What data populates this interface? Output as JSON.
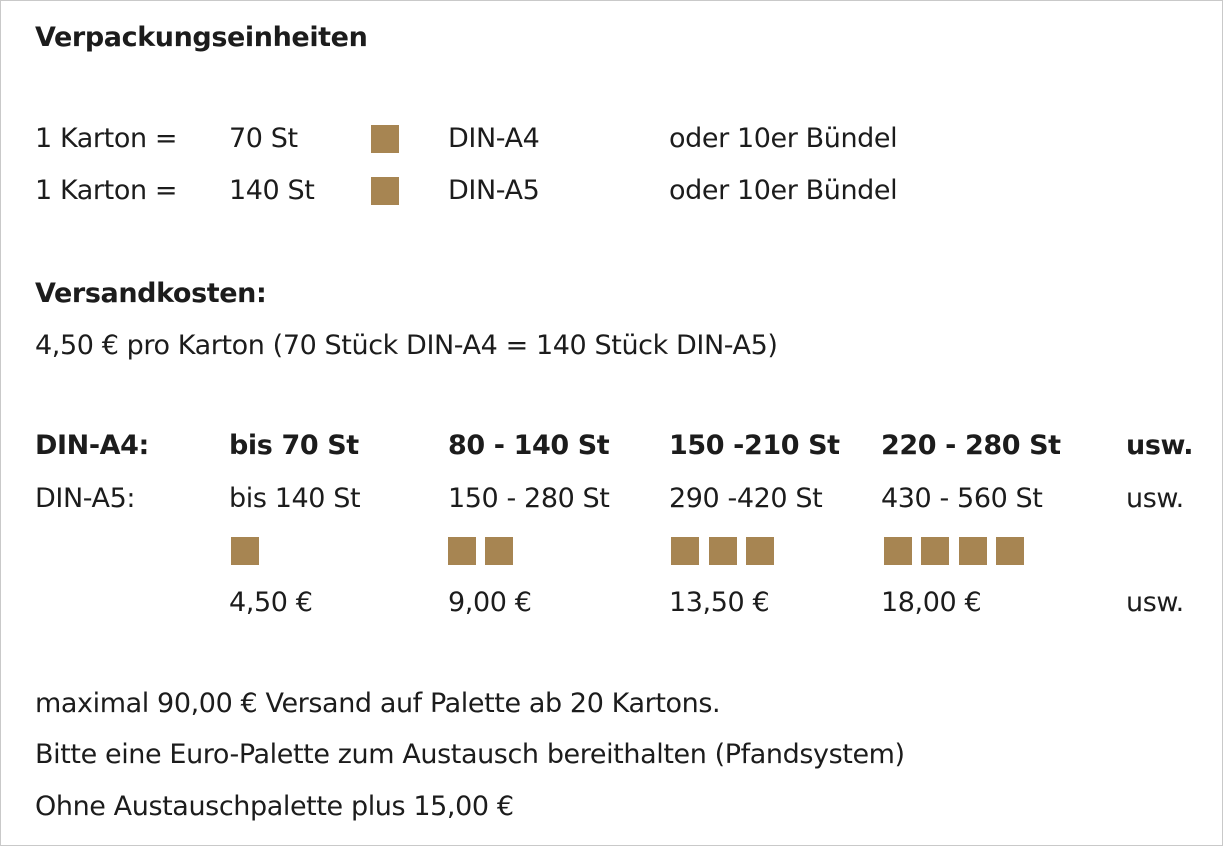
{
  "packaging": {
    "title": "Verpackungseinheiten",
    "rows": [
      {
        "label": "1 Karton =",
        "qty": "70 St",
        "format": "DIN-A4",
        "alt": "oder 10er Bündel"
      },
      {
        "label": "1 Karton =",
        "qty": "140 St",
        "format": "DIN-A5",
        "alt": "oder 10er Bündel"
      }
    ]
  },
  "shipping": {
    "title": "Versandkosten:",
    "note": "4,50 €  pro Karton (70 Stück DIN-A4 = 140 Stück DIN-A5)"
  },
  "tiers": {
    "a4_label": "DIN-A4:",
    "a5_label": "DIN-A5:",
    "columns": [
      {
        "a4": "bis 70 St",
        "a5": "bis 140 St",
        "cartons": 1,
        "price": "4,50 €"
      },
      {
        "a4": "80 - 140 St",
        "a5": "150 - 280 St",
        "cartons": 2,
        "price": "9,00 €"
      },
      {
        "a4": "150 -210 St",
        "a5": "290 -420 St",
        "cartons": 3,
        "price": "13,50 €"
      },
      {
        "a4": "220 - 280 St",
        "a5": "430 - 560 St",
        "cartons": 4,
        "price": "18,00 €"
      }
    ],
    "etc": "usw."
  },
  "pallet": {
    "line1": "maximal 90,00 € Versand auf Palette ab 20 Kartons.",
    "line2": "Bitte eine Euro-Palette zum Austausch bereithalten (Pfandsystem)",
    "line3": "Ohne Austauschpalette plus 15,00 €"
  },
  "colors": {
    "carton": "#a78552",
    "text": "#1c1c1c"
  }
}
